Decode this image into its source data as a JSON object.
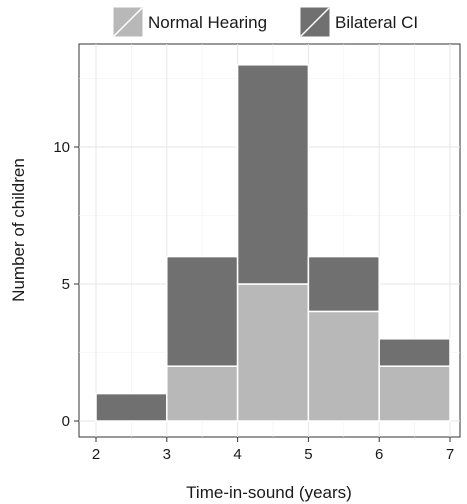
{
  "chart_data": {
    "type": "bar",
    "stacked": true,
    "x": [
      2,
      3,
      4,
      5,
      6
    ],
    "bin_edges": [
      2,
      3,
      4,
      5,
      6,
      7
    ],
    "series": [
      {
        "name": "Normal Hearing",
        "values": [
          0,
          2,
          5,
          4,
          2
        ],
        "color": "#b8b8b8"
      },
      {
        "name": "Bilateral CI",
        "values": [
          1,
          4,
          8,
          2,
          1
        ],
        "color": "#707070"
      }
    ],
    "xlabel": "Time-in-sound (years)",
    "ylabel": "Number of children",
    "xlim": [
      2,
      7
    ],
    "ylim": [
      0,
      13
    ],
    "xticks": [
      "2",
      "3",
      "4",
      "5",
      "6",
      "7"
    ],
    "yticks": [
      "0",
      "5",
      "10"
    ],
    "grid": true,
    "legend_position": "top",
    "panel_color": "#ffffff",
    "grid_color": "#e6e6e6"
  }
}
